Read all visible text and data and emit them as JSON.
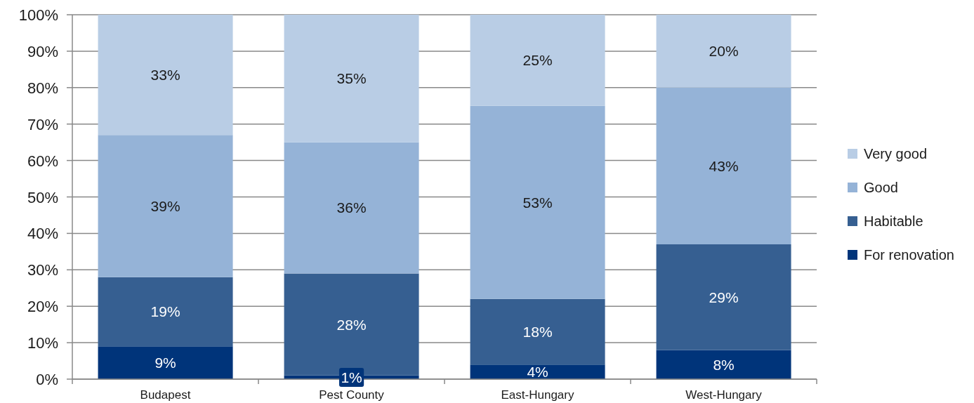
{
  "chart_data": {
    "type": "bar",
    "stacked": true,
    "categories": [
      "Budapest",
      "Pest County",
      "East-Hungary",
      "West-Hungary"
    ],
    "series": [
      {
        "name": "For renovation",
        "color": "#00347a",
        "values": [
          9,
          1,
          4,
          8
        ],
        "value_labels": [
          "9%",
          "1%",
          "4%",
          "8%"
        ]
      },
      {
        "name": "Habitable",
        "color": "#365f91",
        "values": [
          19,
          28,
          18,
          29
        ],
        "value_labels": [
          "19%",
          "28%",
          "18%",
          "29%"
        ]
      },
      {
        "name": "Good",
        "color": "#95b3d7",
        "values": [
          39,
          36,
          53,
          43
        ],
        "value_labels": [
          "39%",
          "36%",
          "53%",
          "43%"
        ]
      },
      {
        "name": "Very good",
        "color": "#b9cde5",
        "values": [
          33,
          35,
          25,
          20
        ],
        "value_labels": [
          "33%",
          "35%",
          "25%",
          "20%"
        ]
      }
    ],
    "ylim": [
      0,
      100
    ],
    "yticks": [
      {
        "value": 0,
        "label": "0%"
      },
      {
        "value": 10,
        "label": "10%"
      },
      {
        "value": 20,
        "label": "20%"
      },
      {
        "value": 30,
        "label": "30%"
      },
      {
        "value": 40,
        "label": "40%"
      },
      {
        "value": 50,
        "label": "50%"
      },
      {
        "value": 60,
        "label": "60%"
      },
      {
        "value": 70,
        "label": "70%"
      },
      {
        "value": 80,
        "label": "80%"
      },
      {
        "value": 90,
        "label": "90%"
      },
      {
        "value": 100,
        "label": "100%"
      }
    ],
    "grid": "y",
    "legend": "right"
  }
}
